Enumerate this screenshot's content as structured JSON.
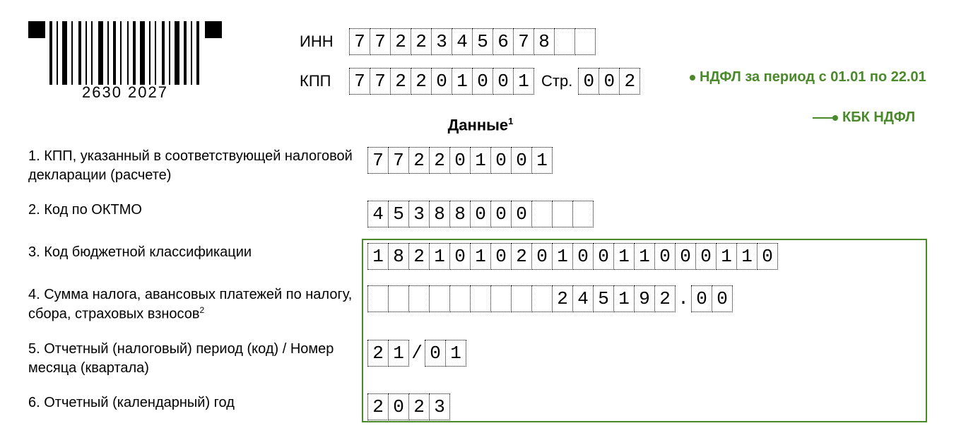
{
  "barcode_text": "2630  2027",
  "header": {
    "inn_label": "ИНН",
    "inn_cells": [
      "7",
      "7",
      "2",
      "2",
      "3",
      "4",
      "5",
      "6",
      "7",
      "8",
      "",
      ""
    ],
    "kpp_label": "КПП",
    "kpp_cells": [
      "7",
      "7",
      "2",
      "2",
      "0",
      "1",
      "0",
      "0",
      "1"
    ],
    "page_label": "Стр.",
    "page_cells": [
      "0",
      "0",
      "2"
    ]
  },
  "section_title": "Данные",
  "section_title_sup": "1",
  "rows": {
    "r1": {
      "label": "1. КПП, указанный в соответствующей налоговой декларации (расчете)",
      "cells": [
        "7",
        "7",
        "2",
        "2",
        "0",
        "1",
        "0",
        "0",
        "1"
      ]
    },
    "r2": {
      "label": "2. Код по ОКТМО",
      "cells": [
        "4",
        "5",
        "3",
        "8",
        "8",
        "0",
        "0",
        "0",
        "",
        "",
        ""
      ]
    },
    "r3": {
      "label": "3. Код бюджетной классификации",
      "cells": [
        "1",
        "8",
        "2",
        "1",
        "0",
        "1",
        "0",
        "2",
        "0",
        "1",
        "0",
        "0",
        "1",
        "1",
        "0",
        "0",
        "0",
        "1",
        "1",
        "0"
      ]
    },
    "r4": {
      "label_html": "4. Сумма налога, авансовых платежей по налогу, сбора, страховых взносов",
      "sup": "2",
      "int_cells": [
        "",
        "",
        "",
        "",
        "",
        "",
        "",
        "",
        "",
        "2",
        "4",
        "5",
        "1",
        "9",
        "2"
      ],
      "sep": ".",
      "dec_cells": [
        "0",
        "0"
      ]
    },
    "r5": {
      "label": "5. Отчетный (налоговый) период (код) / Номер месяца (квартала)",
      "p1": [
        "2",
        "1"
      ],
      "sep": "/",
      "p2": [
        "0",
        "1"
      ]
    },
    "r6": {
      "label": "6. Отчетный (календарный) год",
      "cells": [
        "2",
        "0",
        "2",
        "3"
      ]
    }
  },
  "annotations": {
    "a1": "НДФЛ за период с 01.01 по 22.01",
    "a2": "КБК НДФЛ"
  },
  "colors": {
    "highlight": "#4a8a2a"
  }
}
